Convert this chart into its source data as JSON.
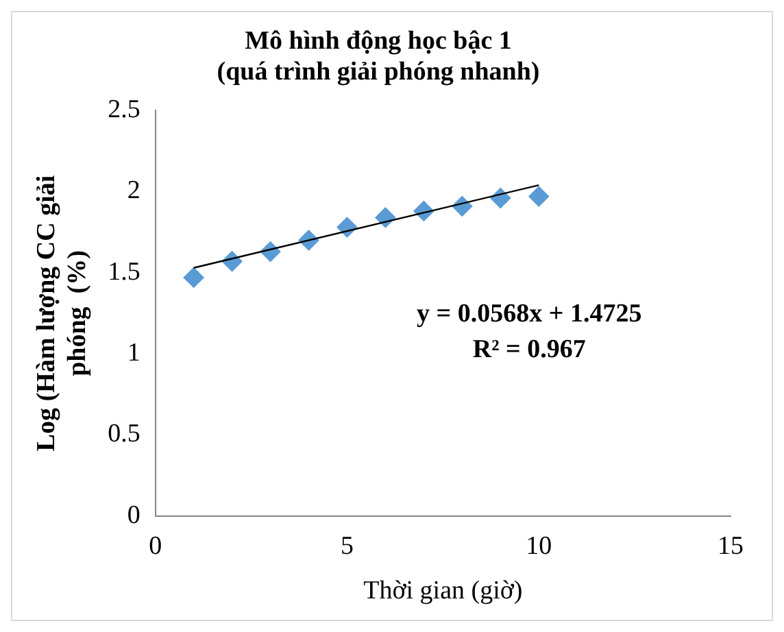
{
  "chart_data": {
    "type": "scatter",
    "title": "Mô hình động học bậc 1\n(quá trình giải phóng nhanh)",
    "xlabel": "Thời gian (giờ)",
    "ylabel": "Log (Hàm lượng CC giải\nphóng  (%)",
    "x": [
      1,
      2,
      3,
      4,
      5,
      6,
      7,
      8,
      9,
      10
    ],
    "series": [
      {
        "color": "#5b9bd5",
        "marker": "diamond",
        "values": [
          1.47,
          1.57,
          1.63,
          1.7,
          1.78,
          1.84,
          1.88,
          1.91,
          1.96,
          1.97
        ]
      },
      {
        "type": "line",
        "color": "#000000",
        "marker": "none",
        "x": [
          1,
          10
        ],
        "values": [
          1.53,
          2.04
        ]
      }
    ],
    "xlim": [
      0,
      15
    ],
    "xticks": [
      0,
      5,
      10,
      15
    ],
    "ylim": [
      0,
      2.5
    ],
    "yticks": [
      0,
      0.5,
      1,
      1.5,
      2,
      2.5
    ],
    "grid": false,
    "legend": false,
    "annotations": [
      "y = 0.0568x + 1.4725",
      "R² = 0.967"
    ]
  }
}
